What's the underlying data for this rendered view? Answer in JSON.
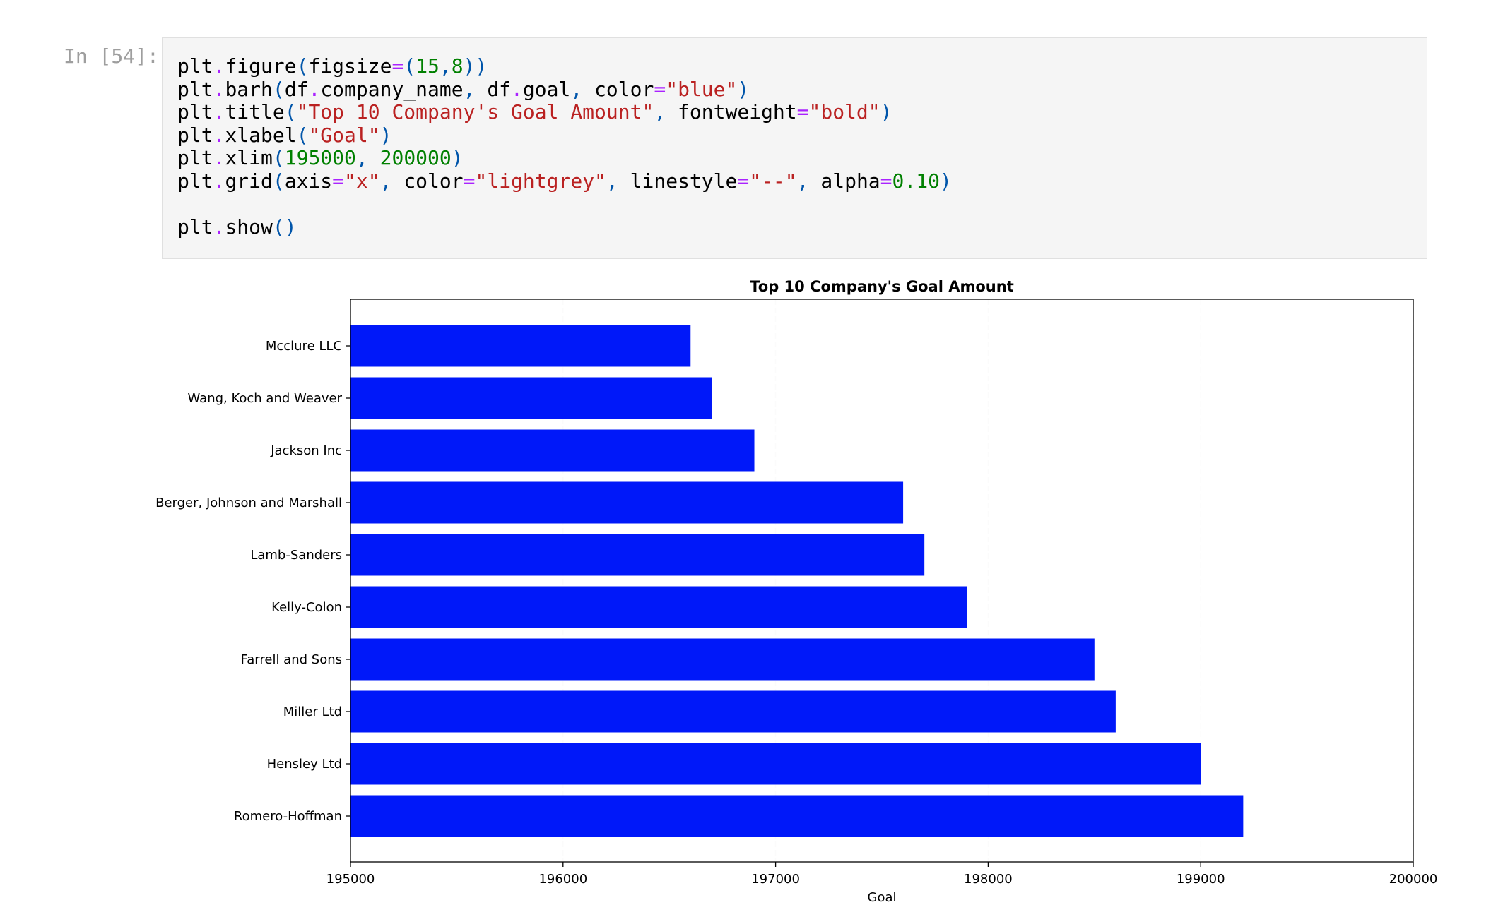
{
  "cell": {
    "prompt": "In [54]:",
    "code_lines": [
      [
        [
          "plt",
          "t"
        ],
        [
          ".",
          "op"
        ],
        [
          "figure",
          "t"
        ],
        [
          "(",
          "p"
        ],
        [
          "figsize",
          "t"
        ],
        [
          "=",
          "op"
        ],
        [
          "(",
          "p"
        ],
        [
          "15",
          "n"
        ],
        [
          ",",
          "p"
        ],
        [
          "8",
          "n"
        ],
        [
          "))",
          "p"
        ]
      ],
      [
        [
          "plt",
          "t"
        ],
        [
          ".",
          "op"
        ],
        [
          "barh",
          "t"
        ],
        [
          "(",
          "p"
        ],
        [
          "df",
          "t"
        ],
        [
          ".",
          "op"
        ],
        [
          "company_name",
          "t"
        ],
        [
          ",",
          "p"
        ],
        [
          " df",
          "t"
        ],
        [
          ".",
          "op"
        ],
        [
          "goal",
          "t"
        ],
        [
          ",",
          "p"
        ],
        [
          " color",
          "t"
        ],
        [
          "=",
          "op"
        ],
        [
          "\"blue\"",
          "s"
        ],
        [
          ")",
          "p"
        ]
      ],
      [
        [
          "plt",
          "t"
        ],
        [
          ".",
          "op"
        ],
        [
          "title",
          "t"
        ],
        [
          "(",
          "p"
        ],
        [
          "\"Top 10 Company's Goal Amount\"",
          "s"
        ],
        [
          ",",
          "p"
        ],
        [
          " fontweight",
          "t"
        ],
        [
          "=",
          "op"
        ],
        [
          "\"bold\"",
          "s"
        ],
        [
          ")",
          "p"
        ]
      ],
      [
        [
          "plt",
          "t"
        ],
        [
          ".",
          "op"
        ],
        [
          "xlabel",
          "t"
        ],
        [
          "(",
          "p"
        ],
        [
          "\"Goal\"",
          "s"
        ],
        [
          ")",
          "p"
        ]
      ],
      [
        [
          "plt",
          "t"
        ],
        [
          ".",
          "op"
        ],
        [
          "xlim",
          "t"
        ],
        [
          "(",
          "p"
        ],
        [
          "195000",
          "n"
        ],
        [
          ",",
          "p"
        ],
        [
          " ",
          "t"
        ],
        [
          "200000",
          "n"
        ],
        [
          ")",
          "p"
        ]
      ],
      [
        [
          "plt",
          "t"
        ],
        [
          ".",
          "op"
        ],
        [
          "grid",
          "t"
        ],
        [
          "(",
          "p"
        ],
        [
          "axis",
          "t"
        ],
        [
          "=",
          "op"
        ],
        [
          "\"x\"",
          "s"
        ],
        [
          ",",
          "p"
        ],
        [
          " color",
          "t"
        ],
        [
          "=",
          "op"
        ],
        [
          "\"lightgrey\"",
          "s"
        ],
        [
          ",",
          "p"
        ],
        [
          " linestyle",
          "t"
        ],
        [
          "=",
          "op"
        ],
        [
          "\"--\"",
          "s"
        ],
        [
          ",",
          "p"
        ],
        [
          " alpha",
          "t"
        ],
        [
          "=",
          "op"
        ],
        [
          "0.10",
          "n"
        ],
        [
          ")",
          "p"
        ]
      ],
      [],
      [
        [
          "plt",
          "t"
        ],
        [
          ".",
          "op"
        ],
        [
          "show",
          "t"
        ],
        [
          "()",
          "p"
        ]
      ]
    ]
  },
  "chart_data": {
    "type": "bar",
    "orientation": "horizontal",
    "title": "Top 10 Company's Goal Amount",
    "xlabel": "Goal",
    "ylabel": "",
    "xlim": [
      195000,
      200000
    ],
    "xticks": [
      "195000",
      "196000",
      "197000",
      "198000",
      "199000",
      "200000"
    ],
    "xtick_values": [
      195000,
      196000,
      197000,
      198000,
      199000,
      200000
    ],
    "bar_color": "#0018f9",
    "grid": "x, lightgrey, dashed, alpha 0.10",
    "categories": [
      "Mcclure LLC",
      "Wang, Koch and Weaver",
      "Jackson Inc",
      "Berger, Johnson and Marshall",
      "Lamb-Sanders",
      "Kelly-Colon",
      "Farrell and Sons",
      "Miller Ltd",
      "Hensley Ltd",
      "Romero-Hoffman"
    ],
    "values": [
      196600,
      196700,
      196900,
      197600,
      197700,
      197900,
      198500,
      198600,
      199000,
      199200
    ]
  }
}
